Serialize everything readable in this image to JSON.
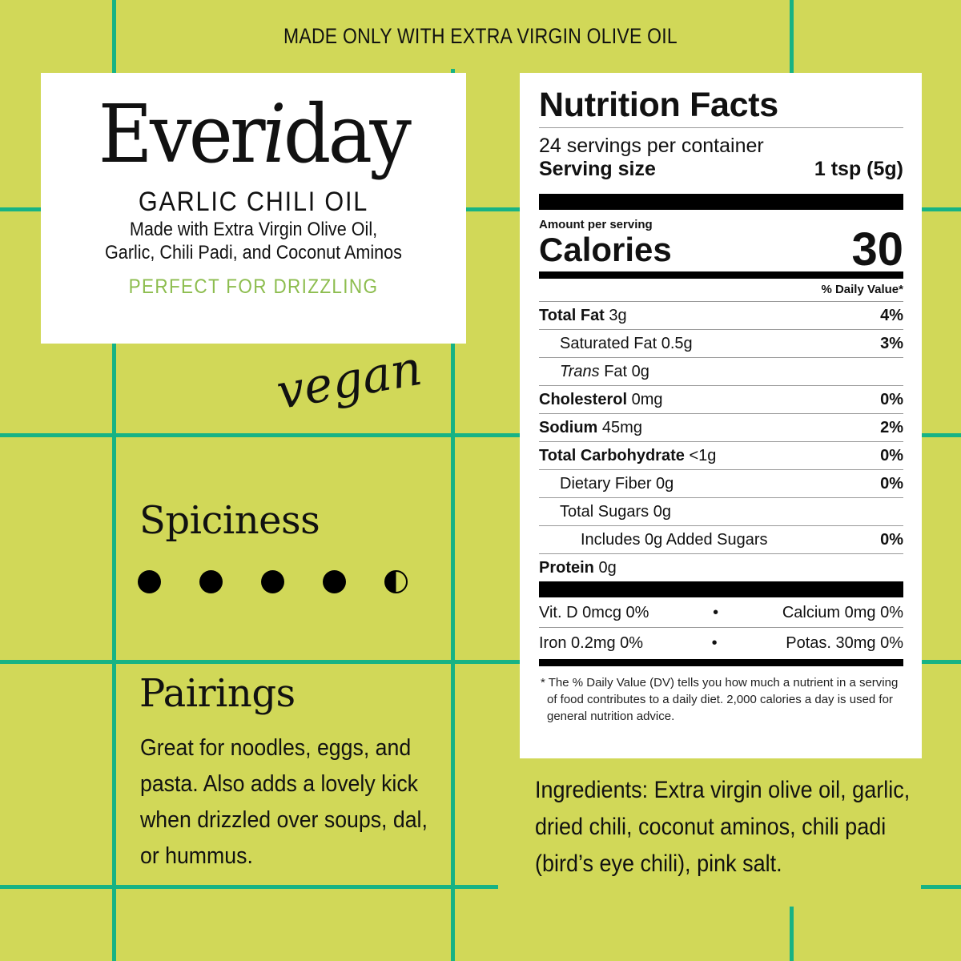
{
  "colors": {
    "background": "#d1d858",
    "grid": "#17b384",
    "accent_text": "#8dbd4f"
  },
  "tagline": "MADE ONLY WITH EXTRA VIRGIN OLIVE OIL",
  "brand": {
    "logo_prefix": "Ever",
    "logo_italic": "i",
    "logo_suffix": "day",
    "product": "GARLIC CHILI OIL",
    "desc1": "Made with Extra Virgin Olive Oil,",
    "desc2": "Garlic, Chili Padi, and Coconut Aminos",
    "perfect": "PERFECT FOR DRIZZLING"
  },
  "vegan": "vegan",
  "spiciness": {
    "title": "Spiciness",
    "level": 4.5,
    "max": 5
  },
  "pairings": {
    "title": "Pairings",
    "text": "Great for noodles, eggs, and pasta. Also adds a lovely kick when drizzled over soups, dal, or hummus."
  },
  "ingredients": "Ingredients: Extra virgin olive oil, garlic, dried chili, coconut aminos, chili padi (bird’s eye chili), pink salt.",
  "nutrition": {
    "title": "Nutrition Facts",
    "servings": "24 servings per container",
    "serving_label": "Serving size",
    "serving_value": "1 tsp (5g)",
    "amount_label": "Amount per serving",
    "calories_label": "Calories",
    "calories": "30",
    "dv_header": "% Daily Value*",
    "rows": [
      {
        "name": "Total Fat",
        "amount": "3g",
        "dv": "4%",
        "bold": true,
        "indent": 0
      },
      {
        "name": "Saturated Fat",
        "amount": "0.5g",
        "dv": "3%",
        "bold": false,
        "indent": 1
      },
      {
        "name": "Trans",
        "amount": "Fat 0g",
        "dv": "",
        "bold": false,
        "indent": 1,
        "italic": true
      },
      {
        "name": "Cholesterol",
        "amount": "0mg",
        "dv": "0%",
        "bold": true,
        "indent": 0
      },
      {
        "name": "Sodium",
        "amount": "45mg",
        "dv": "2%",
        "bold": true,
        "indent": 0
      },
      {
        "name": "Total Carbohydrate",
        "amount": "<1g",
        "dv": "0%",
        "bold": true,
        "indent": 0
      },
      {
        "name": "Dietary Fiber",
        "amount": "0g",
        "dv": "0%",
        "bold": false,
        "indent": 1
      },
      {
        "name": "Total Sugars",
        "amount": "0g",
        "dv": "",
        "bold": false,
        "indent": 1
      },
      {
        "name": "Includes 0g Added Sugars",
        "amount": "",
        "dv": "0%",
        "bold": false,
        "indent": 2
      },
      {
        "name": "Protein",
        "amount": "0g",
        "dv": "",
        "bold": true,
        "indent": 0
      }
    ],
    "vit_d": "Vit. D 0mcg 0%",
    "calcium": "Calcium 0mg 0%",
    "iron": "Iron 0.2mg 0%",
    "potas": "Potas. 30mg 0%",
    "bullet": "•",
    "footnote": "* The % Daily Value (DV) tells you how much a nutrient in a serving of food contributes to a daily diet. 2,000 calories a day is used for general nutrition advice."
  }
}
